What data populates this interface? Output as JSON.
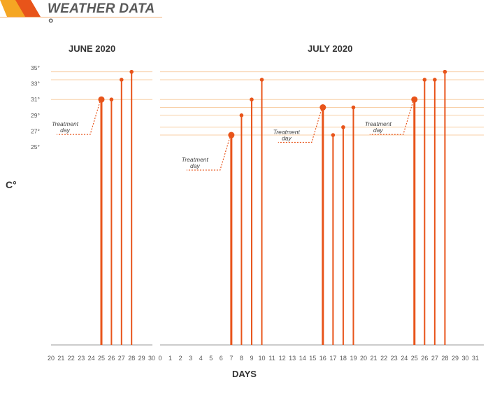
{
  "header": {
    "title": "WEATHER DATA °"
  },
  "chart_data": {
    "type": "lollipop",
    "title": "WEATHER DATA °",
    "ylabel": "C°",
    "xlabel": "DAYS",
    "y_ticks": [
      "35°",
      "33°",
      "31°",
      "29°",
      "27°",
      "25°"
    ],
    "y_tick_values": [
      35,
      33,
      31,
      29,
      27,
      25
    ],
    "colors": {
      "accent": "#e8541a",
      "light": "#f8cfa6",
      "axis": "#9a9a9a",
      "dotted": "#e8541a"
    },
    "panels": [
      {
        "title": "JUNE 2020",
        "x_ticks": [
          "20",
          "21",
          "22",
          "23",
          "24",
          "25",
          "26",
          "27",
          "28",
          "29",
          "30"
        ],
        "points": [
          {
            "day": 25,
            "temp": 31.0,
            "treatment": true
          },
          {
            "day": 26,
            "temp": 31.0
          },
          {
            "day": 27,
            "temp": 33.5
          },
          {
            "day": 28,
            "temp": 34.5
          }
        ],
        "annotations": [
          {
            "line1": "Treatment",
            "line2": "day",
            "for_day": 25
          }
        ]
      },
      {
        "title": "JULY 2020",
        "x_ticks": [
          "0",
          "1",
          "2",
          "3",
          "4",
          "5",
          "6",
          "7",
          "8",
          "9",
          "10",
          "11",
          "12",
          "13",
          "14",
          "15",
          "16",
          "17",
          "18",
          "19",
          "20",
          "21",
          "22",
          "23",
          "24",
          "25",
          "26",
          "27",
          "28",
          "29",
          "30",
          "31"
        ],
        "points": [
          {
            "day": 7,
            "temp": 26.5,
            "treatment": true
          },
          {
            "day": 8,
            "temp": 29.0
          },
          {
            "day": 9,
            "temp": 31.0
          },
          {
            "day": 10,
            "temp": 33.5
          },
          {
            "day": 16,
            "temp": 30.0,
            "treatment": true
          },
          {
            "day": 17,
            "temp": 26.5
          },
          {
            "day": 18,
            "temp": 27.5
          },
          {
            "day": 19,
            "temp": 30.0
          },
          {
            "day": 25,
            "temp": 31.0,
            "treatment": true
          },
          {
            "day": 26,
            "temp": 33.5
          },
          {
            "day": 27,
            "temp": 33.5
          },
          {
            "day": 28,
            "temp": 34.5
          }
        ],
        "annotations": [
          {
            "line1": "Treatment",
            "line2": "day",
            "for_day": 7
          },
          {
            "line1": "Treatment",
            "line2": "day",
            "for_day": 16
          },
          {
            "line1": "Treatment",
            "line2": "day",
            "for_day": 25
          }
        ]
      }
    ]
  }
}
